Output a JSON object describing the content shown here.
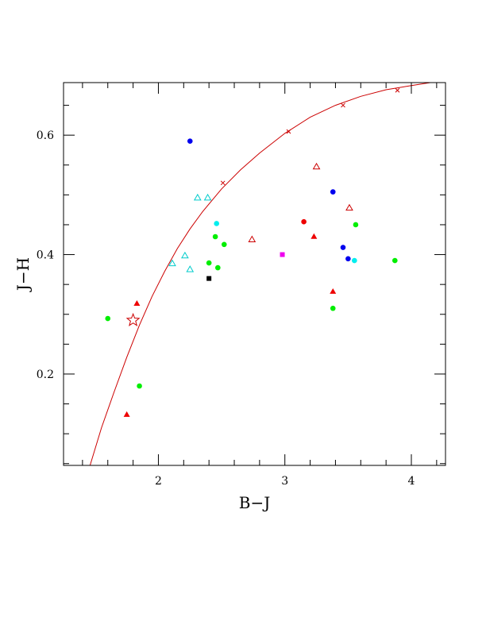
{
  "chart_data": {
    "type": "scatter",
    "xlabel": "B−J",
    "ylabel": "J−H",
    "xlim": [
      1.25,
      4.27
    ],
    "ylim": [
      0.047,
      0.688
    ],
    "x_major_ticks": [
      2,
      3,
      4
    ],
    "x_tick_labels": [
      "2",
      "3",
      "4"
    ],
    "x_minor_step": 0.2,
    "y_major_ticks": [
      0.2,
      0.4,
      0.6
    ],
    "y_tick_labels": [
      "0.2",
      "0.4",
      "0.6"
    ],
    "y_minor_step": 0.05,
    "grid": false,
    "curve": {
      "color": "#cc0000",
      "points": [
        [
          1.46,
          0.047
        ],
        [
          1.55,
          0.11
        ],
        [
          1.65,
          0.17
        ],
        [
          1.75,
          0.228
        ],
        [
          1.85,
          0.282
        ],
        [
          1.95,
          0.33
        ],
        [
          2.05,
          0.372
        ],
        [
          2.15,
          0.41
        ],
        [
          2.25,
          0.443
        ],
        [
          2.35,
          0.472
        ],
        [
          2.5,
          0.51
        ],
        [
          2.65,
          0.542
        ],
        [
          2.8,
          0.57
        ],
        [
          3.0,
          0.603
        ],
        [
          3.2,
          0.63
        ],
        [
          3.4,
          0.65
        ],
        [
          3.6,
          0.665
        ],
        [
          3.8,
          0.676
        ],
        [
          4.0,
          0.683
        ],
        [
          4.15,
          0.688
        ]
      ],
      "cross_markers": [
        [
          2.51,
          0.52
        ],
        [
          3.03,
          0.606
        ],
        [
          3.46,
          0.65
        ],
        [
          3.89,
          0.675
        ]
      ]
    },
    "series": [
      {
        "marker": "filled-circle",
        "color": "#00ee00",
        "points": [
          [
            1.6,
            0.293
          ],
          [
            1.85,
            0.18
          ],
          [
            2.4,
            0.386
          ],
          [
            2.45,
            0.43
          ],
          [
            2.47,
            0.378
          ],
          [
            2.52,
            0.417
          ],
          [
            3.38,
            0.31
          ],
          [
            3.56,
            0.45
          ],
          [
            3.87,
            0.39
          ]
        ]
      },
      {
        "marker": "filled-circle",
        "color": "#0000ee",
        "points": [
          [
            2.25,
            0.59
          ],
          [
            3.38,
            0.505
          ],
          [
            3.46,
            0.412
          ],
          [
            3.5,
            0.393
          ]
        ]
      },
      {
        "marker": "filled-circle",
        "color": "#00eeee",
        "points": [
          [
            2.46,
            0.452
          ],
          [
            3.55,
            0.39
          ]
        ]
      },
      {
        "marker": "filled-circle",
        "color": "#ee0000",
        "points": [
          [
            3.15,
            0.455
          ]
        ]
      },
      {
        "marker": "filled-triangle",
        "color": "#ee0000",
        "points": [
          [
            1.75,
            0.132
          ],
          [
            1.83,
            0.318
          ],
          [
            3.23,
            0.43
          ],
          [
            3.38,
            0.338
          ]
        ]
      },
      {
        "marker": "open-triangle",
        "color": "#cc0000",
        "points": [
          [
            2.74,
            0.425
          ],
          [
            3.25,
            0.547
          ],
          [
            3.51,
            0.478
          ]
        ]
      },
      {
        "marker": "open-triangle",
        "color": "#00cccc",
        "points": [
          [
            2.11,
            0.385
          ],
          [
            2.21,
            0.398
          ],
          [
            2.25,
            0.375
          ],
          [
            2.31,
            0.495
          ],
          [
            2.39,
            0.495
          ]
        ]
      },
      {
        "marker": "filled-square",
        "color": "#ee00ee",
        "points": [
          [
            2.98,
            0.4
          ]
        ]
      },
      {
        "marker": "filled-square",
        "color": "#000000",
        "points": [
          [
            2.4,
            0.36
          ]
        ]
      },
      {
        "marker": "open-star",
        "color": "#cc0000",
        "points": [
          [
            1.8,
            0.29
          ]
        ]
      }
    ]
  }
}
